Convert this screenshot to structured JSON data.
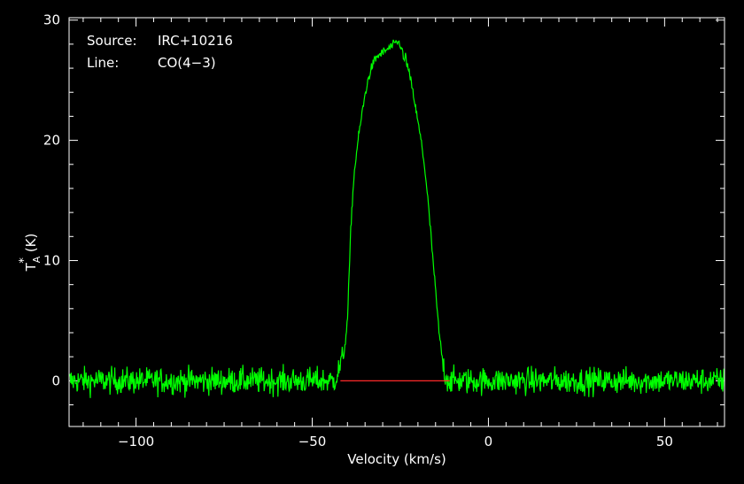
{
  "annotation": {
    "source_label": "Source:",
    "source_value": "IRC+10216",
    "line_label": "Line:",
    "line_value": "CO(4−3)"
  },
  "chart_data": {
    "type": "line",
    "title": "",
    "xlabel": "Velocity (km/s)",
    "ylabel": {
      "base": "T",
      "sub": "A",
      "sup": "*",
      "unit": "(K)"
    },
    "xlim": [
      -119,
      67
    ],
    "ylim": [
      -3.8,
      30.2
    ],
    "xticks": [
      -100,
      -50,
      0,
      50
    ],
    "xtick_labels": [
      "−100",
      "−50",
      "0",
      "50"
    ],
    "yticks": [
      0,
      10,
      20,
      30
    ],
    "ytick_labels": [
      "0",
      "10",
      "20",
      "30"
    ],
    "grid": false,
    "colors": {
      "background": "#000000",
      "axes": "#ffffff",
      "spectrum": "#00ff00",
      "baseline": "#ff2a2a"
    },
    "series": [
      {
        "kind": "spectrum",
        "x": [
          -119,
          -60,
          -44,
          -43,
          -42,
          -41,
          -40,
          -39.5,
          -39,
          -38.5,
          -38,
          -37,
          -36,
          -35,
          -34,
          -33,
          -32,
          -31,
          -30,
          -29,
          -28,
          -27,
          -26,
          -25,
          -24.5,
          -24,
          -23.5,
          -23,
          -22,
          -21,
          -20,
          -19,
          -18,
          -17,
          -16,
          -15,
          -14,
          -13,
          -12.5,
          -12,
          -11,
          -10,
          0,
          67
        ],
        "y": [
          0,
          0,
          0,
          0.4,
          1.3,
          2.2,
          5,
          9,
          13,
          15.5,
          17.5,
          20,
          22,
          23.8,
          25.2,
          26.2,
          26.8,
          27.1,
          27.3,
          27.5,
          27.7,
          27.9,
          28.2,
          28.0,
          27.5,
          26.6,
          27.0,
          26.2,
          24.9,
          23.3,
          21.5,
          19.8,
          17.5,
          14.5,
          11,
          7.5,
          4,
          1.6,
          0.8,
          0.3,
          0,
          0,
          0,
          0
        ],
        "noise_rms": 0.55
      },
      {
        "kind": "baseline",
        "x": [
          -42,
          -11
        ],
        "y": [
          0,
          0
        ]
      }
    ]
  }
}
